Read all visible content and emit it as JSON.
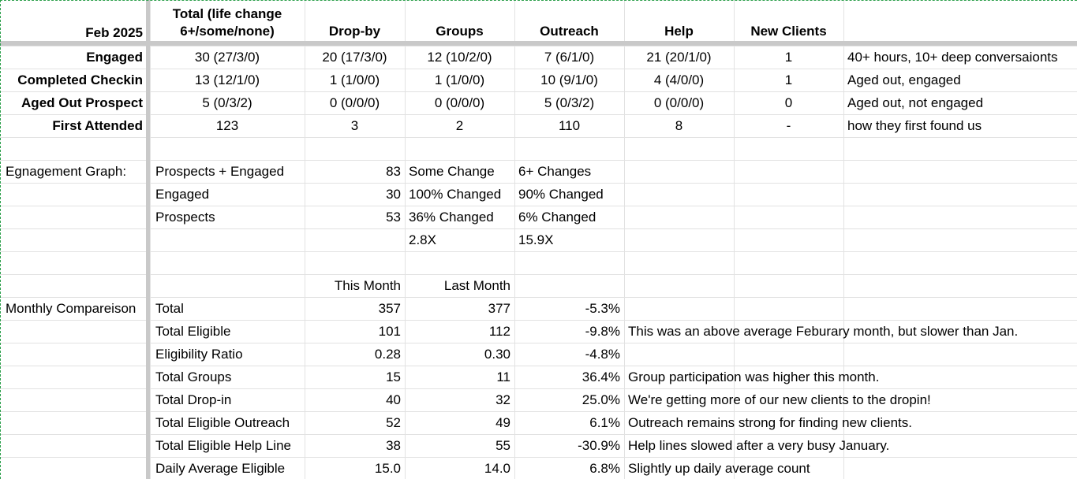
{
  "header": {
    "month": "Feb 2025",
    "total_line1": "Total (life change",
    "total_line2": "6+/some/none)",
    "dropby": "Drop-by",
    "groups": "Groups",
    "outreach": "Outreach",
    "help": "Help",
    "new_clients": "New Clients"
  },
  "summary_rows": [
    {
      "label": "Engaged",
      "total": "30 (27/3/0)",
      "dropby": "20 (17/3/0)",
      "groups": "12 (10/2/0)",
      "outreach": "7 (6/1/0)",
      "help": "21 (20/1/0)",
      "new_clients": "1",
      "note": "40+ hours, 10+ deep conversaionts"
    },
    {
      "label": "Completed Checkin",
      "total": "13 (12/1/0)",
      "dropby": "1 (1/0/0)",
      "groups": "1 (1/0/0)",
      "outreach": "10 (9/1/0)",
      "help": "4 (4/0/0)",
      "new_clients": "1",
      "note": "Aged out, engaged"
    },
    {
      "label": "Aged Out Prospect",
      "total": "5 (0/3/2)",
      "dropby": "0 (0/0/0)",
      "groups": "0 (0/0/0)",
      "outreach": "5 (0/3/2)",
      "help": "0 (0/0/0)",
      "new_clients": "0",
      "note": "Aged out, not engaged"
    },
    {
      "label": "First Attended",
      "total": "123",
      "dropby": "3",
      "groups": "2",
      "outreach": "110",
      "help": "8",
      "new_clients": "-",
      "note": "how they first found us"
    }
  ],
  "engagement": {
    "section_label": "Egnagement Graph:",
    "rows": [
      {
        "label": "Prospects + Engaged",
        "value": "83",
        "some": "Some Change",
        "six": "6+ Changes"
      },
      {
        "label": "Engaged",
        "value": "30",
        "some": "100% Changed",
        "six": "90% Changed"
      },
      {
        "label": "Prospects",
        "value": "53",
        "some": "36% Changed",
        "six": "6% Changed"
      },
      {
        "label": "",
        "value": "",
        "some": "2.8X",
        "six": "15.9X"
      }
    ]
  },
  "comparison": {
    "section_label": "Monthly Compareison",
    "this_month_header": "This Month",
    "last_month_header": "Last Month",
    "rows": [
      {
        "label": "Total",
        "this": "357",
        "last": "377",
        "pct": "-5.3%",
        "note": ""
      },
      {
        "label": "Total Eligible",
        "this": "101",
        "last": "112",
        "pct": "-9.8%",
        "note": "This was an above average Feburary month, but slower than Jan."
      },
      {
        "label": "Eligibility Ratio",
        "this": "0.28",
        "last": "0.30",
        "pct": "-4.8%",
        "note": ""
      },
      {
        "label": "Total Groups",
        "this": "15",
        "last": "11",
        "pct": "36.4%",
        "note": "Group participation was higher this month."
      },
      {
        "label": "Total Drop-in",
        "this": "40",
        "last": "32",
        "pct": "25.0%",
        "note": "We're getting more of our new clients to the dropin!"
      },
      {
        "label": "Total Eligible Outreach",
        "this": "52",
        "last": "49",
        "pct": "6.1%",
        "note": "Outreach remains strong for finding new clients."
      },
      {
        "label": "Total Eligible Help Line",
        "this": "38",
        "last": "55",
        "pct": "-30.9%",
        "note": "Help lines slowed after a very busy January."
      },
      {
        "label": "Daily Average Eligible",
        "this": "15.0",
        "last": "14.0",
        "pct": "6.8%",
        "note": "Slightly up daily average count"
      }
    ]
  }
}
